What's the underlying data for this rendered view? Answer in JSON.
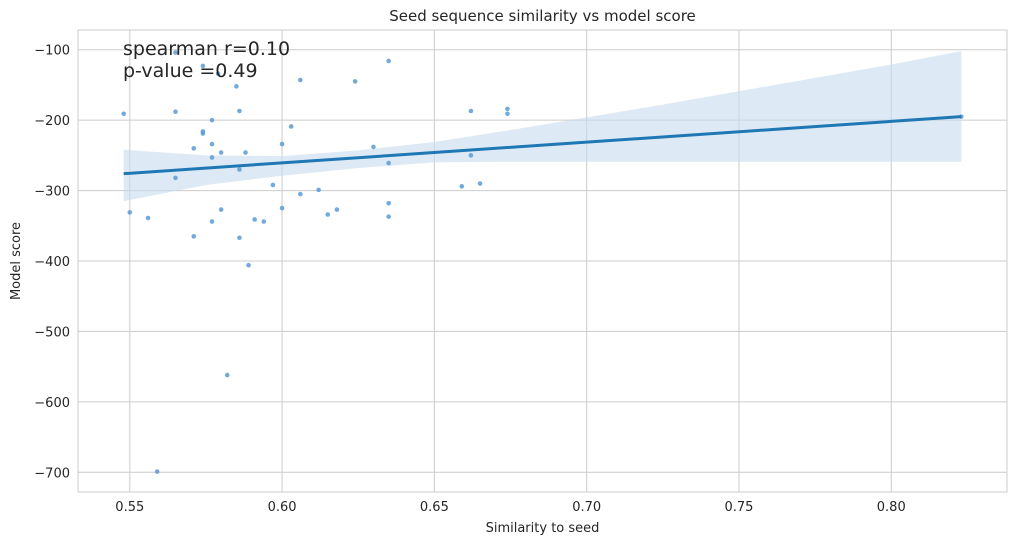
{
  "chart_data": {
    "type": "scatter",
    "title": "Seed sequence similarity vs model score",
    "xlabel": "Similarity to seed",
    "ylabel": "Model score",
    "xlim": [
      0.533,
      0.838
    ],
    "ylim": [
      -728,
      -72
    ],
    "xticks": [
      0.55,
      0.6,
      0.65,
      0.7,
      0.75,
      0.8
    ],
    "xtick_labels": [
      "0.55",
      "0.60",
      "0.65",
      "0.70",
      "0.75",
      "0.80"
    ],
    "yticks": [
      -100,
      -200,
      -300,
      -400,
      -500,
      -600,
      -700
    ],
    "ytick_labels": [
      "−100",
      "−200",
      "−300",
      "−400",
      "−500",
      "−600",
      "−700"
    ],
    "grid": true,
    "annotations": [
      "spearman r=0.10",
      "p-value =0.49"
    ],
    "colors": {
      "points": "#5b9bd5",
      "regression_line": "#1f77b4",
      "confidence_band": "#c6dbef"
    },
    "points": [
      {
        "x": 0.548,
        "y": -191
      },
      {
        "x": 0.55,
        "y": -331
      },
      {
        "x": 0.556,
        "y": -339
      },
      {
        "x": 0.559,
        "y": -699
      },
      {
        "x": 0.565,
        "y": -188
      },
      {
        "x": 0.565,
        "y": -282
      },
      {
        "x": 0.565,
        "y": -104
      },
      {
        "x": 0.571,
        "y": -240
      },
      {
        "x": 0.571,
        "y": -365
      },
      {
        "x": 0.574,
        "y": -216
      },
      {
        "x": 0.574,
        "y": -219
      },
      {
        "x": 0.574,
        "y": -123
      },
      {
        "x": 0.577,
        "y": -200
      },
      {
        "x": 0.577,
        "y": -234
      },
      {
        "x": 0.577,
        "y": -253
      },
      {
        "x": 0.577,
        "y": -344
      },
      {
        "x": 0.579,
        "y": -134
      },
      {
        "x": 0.58,
        "y": -246
      },
      {
        "x": 0.58,
        "y": -327
      },
      {
        "x": 0.582,
        "y": -562
      },
      {
        "x": 0.585,
        "y": -152
      },
      {
        "x": 0.586,
        "y": -187
      },
      {
        "x": 0.586,
        "y": -270
      },
      {
        "x": 0.586,
        "y": -367
      },
      {
        "x": 0.588,
        "y": -246
      },
      {
        "x": 0.589,
        "y": -406
      },
      {
        "x": 0.591,
        "y": -341
      },
      {
        "x": 0.594,
        "y": -344
      },
      {
        "x": 0.597,
        "y": -292
      },
      {
        "x": 0.6,
        "y": -234
      },
      {
        "x": 0.6,
        "y": -325
      },
      {
        "x": 0.603,
        "y": -209
      },
      {
        "x": 0.606,
        "y": -143
      },
      {
        "x": 0.606,
        "y": -305
      },
      {
        "x": 0.612,
        "y": -299
      },
      {
        "x": 0.615,
        "y": -334
      },
      {
        "x": 0.618,
        "y": -327
      },
      {
        "x": 0.624,
        "y": -145
      },
      {
        "x": 0.63,
        "y": -238
      },
      {
        "x": 0.635,
        "y": -116
      },
      {
        "x": 0.635,
        "y": -261
      },
      {
        "x": 0.635,
        "y": -318
      },
      {
        "x": 0.635,
        "y": -337
      },
      {
        "x": 0.659,
        "y": -294
      },
      {
        "x": 0.662,
        "y": -187
      },
      {
        "x": 0.662,
        "y": -250
      },
      {
        "x": 0.665,
        "y": -290
      },
      {
        "x": 0.674,
        "y": -184
      },
      {
        "x": 0.674,
        "y": -191
      },
      {
        "x": 0.823,
        "y": -195
      }
    ],
    "regression": {
      "x": [
        0.548,
        0.823
      ],
      "y": [
        -276,
        -195
      ]
    },
    "confidence_band": {
      "x": [
        0.548,
        0.575,
        0.6,
        0.625,
        0.65,
        0.675,
        0.7,
        0.725,
        0.75,
        0.775,
        0.8,
        0.823
      ],
      "upper": [
        -242,
        -250,
        -251,
        -243,
        -231,
        -214,
        -196,
        -178,
        -159,
        -140,
        -121,
        -102
      ],
      "lower": [
        -315,
        -292,
        -279,
        -268,
        -260,
        -259,
        -259,
        -259,
        -259,
        -259,
        -259,
        -259
      ]
    }
  }
}
